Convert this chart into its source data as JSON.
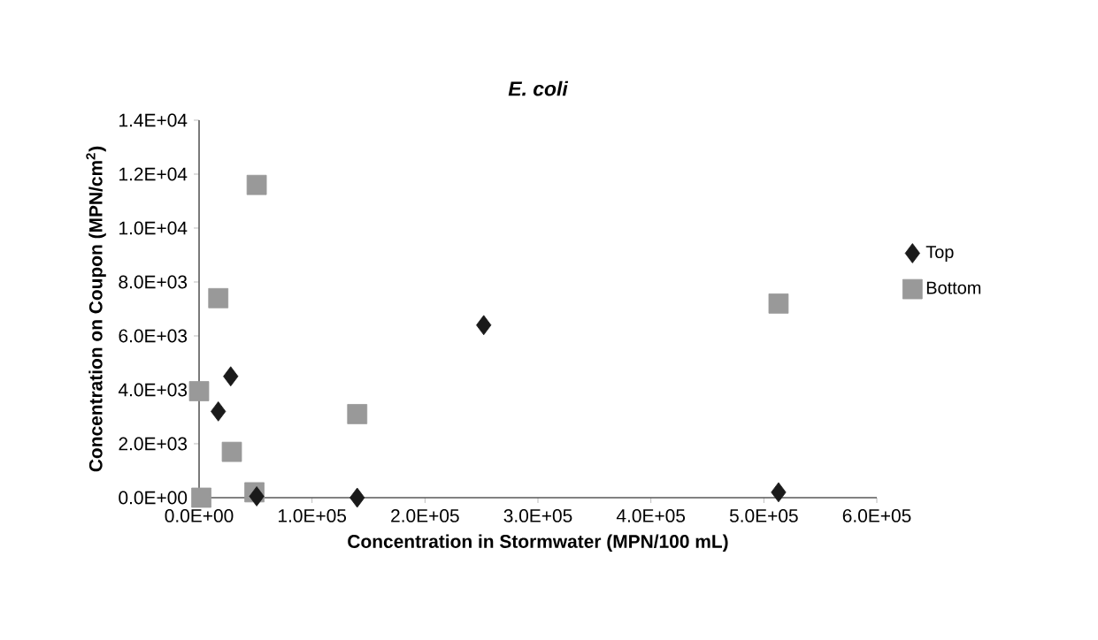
{
  "chart_data": {
    "type": "scatter",
    "title": "E. coli",
    "xlabel": "Concentration in Stormwater (MPN/100 mL)",
    "ylabel": "Concentration on Coupon (MPN/cm$^{2}$)",
    "series": [
      {
        "name": "Top",
        "color": "#1a1a1a",
        "marker": "diamond",
        "x": [
          17000,
          28000,
          51000,
          140000,
          252000,
          513000
        ],
        "values": [
          3200,
          4500,
          50,
          0,
          6400,
          200
        ]
      },
      {
        "name": "Bottom",
        "color": "#999999",
        "marker": "square",
        "x": [
          0,
          2000,
          17000,
          29000,
          49000,
          51000,
          140000,
          513000
        ],
        "values": [
          3950,
          0,
          7400,
          1700,
          200,
          11600,
          3100,
          7200
        ]
      }
    ],
    "xlim": [
      0,
      600000
    ],
    "ylim": [
      0,
      14000
    ],
    "xticks": [
      {
        "value": 0,
        "label": "0.0E+00"
      },
      {
        "value": 100000,
        "label": "1.0E+05"
      },
      {
        "value": 200000,
        "label": "2.0E+05"
      },
      {
        "value": 300000,
        "label": "3.0E+05"
      },
      {
        "value": 400000,
        "label": "4.0E+05"
      },
      {
        "value": 500000,
        "label": "5.0E+05"
      },
      {
        "value": 600000,
        "label": "6.0E+05"
      }
    ],
    "yticks": [
      {
        "value": 0,
        "label": "0.0E+00"
      },
      {
        "value": 2000,
        "label": "2.0E+03"
      },
      {
        "value": 4000,
        "label": "4.0E+03"
      },
      {
        "value": 6000,
        "label": "6.0E+03"
      },
      {
        "value": 8000,
        "label": "8.0E+03"
      },
      {
        "value": 10000,
        "label": "1.0E+04"
      },
      {
        "value": 12000,
        "label": "1.2E+04"
      },
      {
        "value": 14000,
        "label": "1.4E+04"
      }
    ],
    "grid": false,
    "legend": "right"
  }
}
